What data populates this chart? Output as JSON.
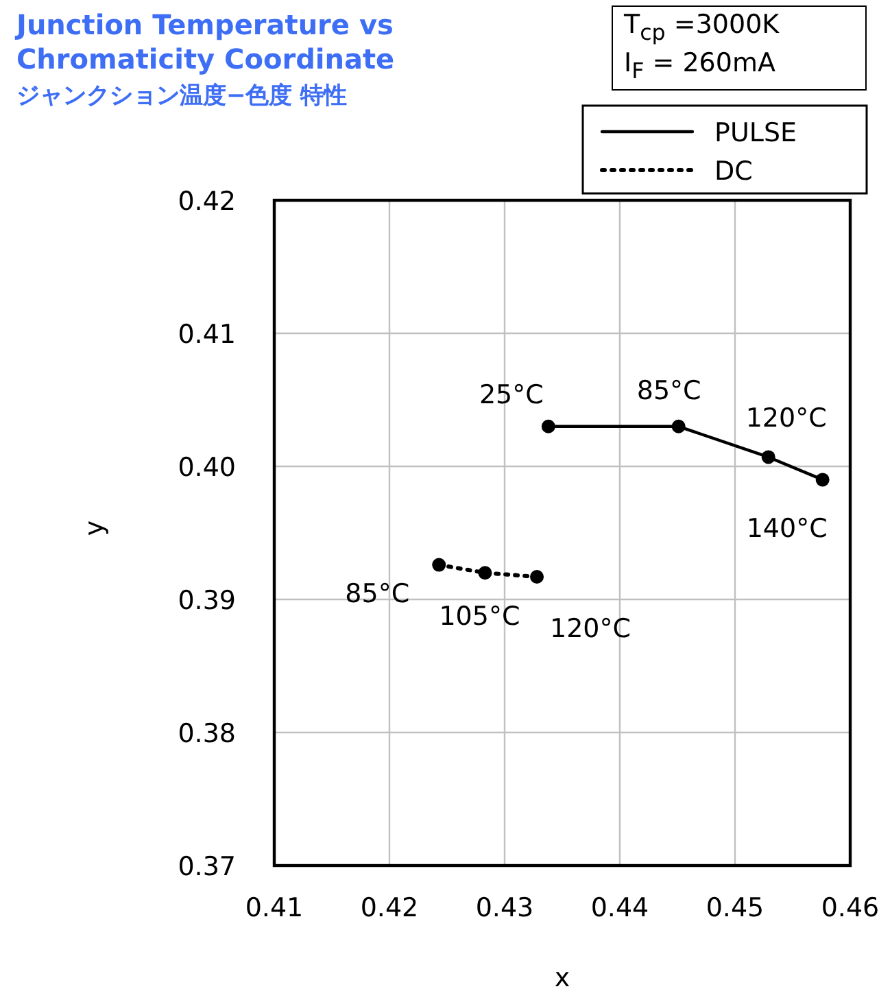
{
  "chart_data": {
    "type": "line",
    "title": "Junction Temperature vs Chromaticity Coordinate",
    "subtitle": "ジャンクション温度−色度 特性",
    "xlabel": "x",
    "ylabel": "y",
    "xlim": [
      0.41,
      0.46
    ],
    "ylim": [
      0.37,
      0.42
    ],
    "xticks": [
      0.41,
      0.42,
      0.43,
      0.44,
      0.45,
      0.46
    ],
    "yticks": [
      0.37,
      0.38,
      0.39,
      {
        "value": 0.4,
        "label": "0.40"
      },
      0.41,
      0.42
    ],
    "grid": true,
    "legend": "top right",
    "marker": "circle",
    "series": [
      {
        "name": "PULSE",
        "color": "#000000",
        "line_style": "solid",
        "x": [
          0.4338,
          0.4451,
          0.4529,
          0.4576
        ],
        "values": [
          0.403,
          0.403,
          0.4007,
          0.399
        ]
      },
      {
        "name": "DC",
        "color": "#000000",
        "line_style": "dotted",
        "x": [
          0.4243,
          0.4283,
          0.4328
        ],
        "values": [
          0.3926,
          0.392,
          0.3917
        ]
      }
    ],
    "annotations": [
      "T$_{cp}$ =3000K",
      "I$_{F}$ = 260mA",
      {
        "text": "25°C",
        "x": 0.4338,
        "y": 0.403
      },
      {
        "text": "85°C",
        "x": 0.4451,
        "y": 0.403
      },
      {
        "text": "120°C",
        "x": 0.4529,
        "y": 0.4007
      },
      {
        "text": "140°C",
        "x": 0.4576,
        "y": 0.399
      },
      {
        "text": "85°C",
        "x": 0.4243,
        "y": 0.3926
      },
      {
        "text": "105°C",
        "x": 0.4283,
        "y": 0.392
      },
      {
        "text": "120°C",
        "x": 0.4328,
        "y": 0.3917
      }
    ]
  }
}
